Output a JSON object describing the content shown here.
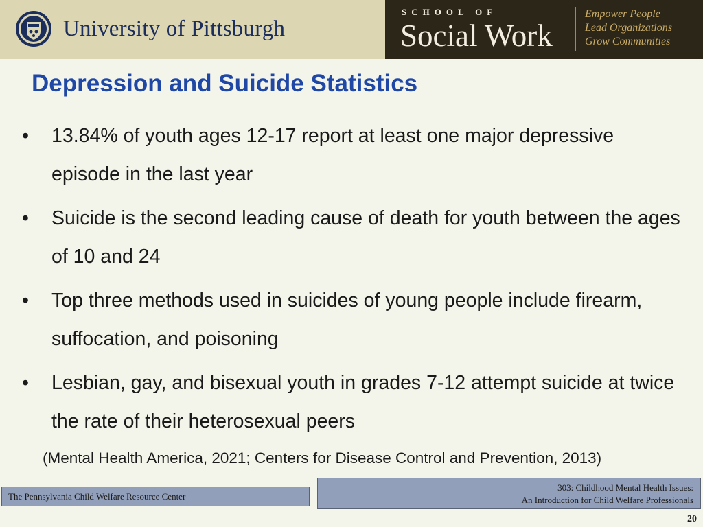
{
  "header": {
    "university_name": "University of Pittsburgh",
    "school_small": "SCHOOL OF",
    "school_name": "Social Work",
    "taglines": [
      "Empower People",
      "Lead Organizations",
      "Grow Communities"
    ]
  },
  "slide": {
    "title": "Depression and Suicide Statistics",
    "bullets": [
      "13.84% of youth ages 12-17 report at least one major depressive episode in the last year",
      "Suicide is the second leading cause of death for youth between the ages of 10 and 24",
      "Top three methods used in suicides of young people include firearm, suffocation, and poisoning",
      "Lesbian, gay, and bisexual youth in grades 7-12 attempt suicide at twice the rate of their heterosexual peers"
    ],
    "bullet_glyph": "•",
    "citation": "(Mental Health America, 2021; Centers for Disease Control and Prevention, 2013)"
  },
  "footer": {
    "left": "The Pennsylvania Child Welfare Resource Center",
    "right_line1": "303: Childhood Mental Health Issues:",
    "right_line2": "An Introduction for Child Welfare Professionals",
    "page_number": "20"
  },
  "colors": {
    "title": "#1f47a5",
    "background": "#f4f5ea",
    "pitt_banner": "#ddd6b2",
    "social_work_banner": "#2b2618",
    "footer_bar": "#929fba"
  }
}
